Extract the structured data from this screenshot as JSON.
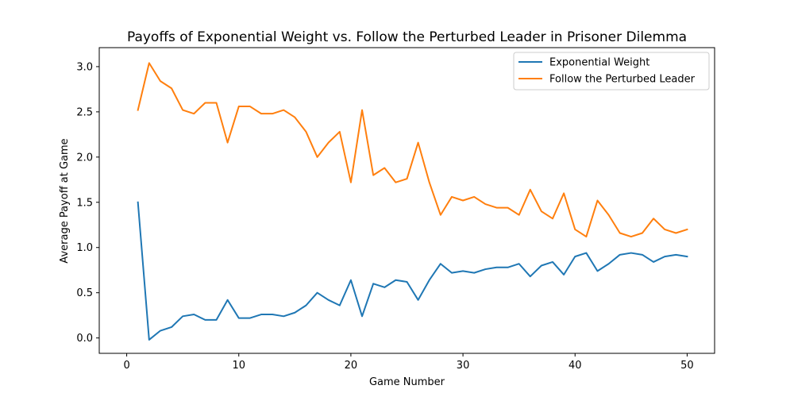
{
  "chart_data": {
    "type": "line",
    "title": "Payoffs of Exponential Weight vs. Follow the Perturbed Leader in Prisoner Dilemma",
    "xlabel": "Game Number",
    "ylabel": "Average Payoff at Game",
    "xlim": [
      -2.45,
      52.45
    ],
    "ylim": [
      -0.17,
      3.21
    ],
    "xticks": [
      0,
      10,
      20,
      30,
      40,
      50
    ],
    "xtick_labels": [
      "0",
      "10",
      "20",
      "30",
      "40",
      "50"
    ],
    "yticks": [
      0.0,
      0.5,
      1.0,
      1.5,
      2.0,
      2.5,
      3.0
    ],
    "ytick_labels": [
      "0.0",
      "0.5",
      "1.0",
      "1.5",
      "2.0",
      "2.5",
      "3.0"
    ],
    "grid": false,
    "legend_position": "top-right",
    "x": [
      1,
      2,
      3,
      4,
      5,
      6,
      7,
      8,
      9,
      10,
      11,
      12,
      13,
      14,
      15,
      16,
      17,
      18,
      19,
      20,
      21,
      22,
      23,
      24,
      25,
      26,
      27,
      28,
      29,
      30,
      31,
      32,
      33,
      34,
      35,
      36,
      37,
      38,
      39,
      40,
      41,
      42,
      43,
      44,
      45,
      46,
      47,
      48,
      49,
      50
    ],
    "series": [
      {
        "name": "Exponential Weight",
        "color": "#1f77b4",
        "values": [
          1.5,
          -0.02,
          0.08,
          0.12,
          0.24,
          0.26,
          0.2,
          0.2,
          0.42,
          0.22,
          0.22,
          0.26,
          0.26,
          0.24,
          0.28,
          0.36,
          0.5,
          0.42,
          0.36,
          0.64,
          0.24,
          0.6,
          0.56,
          0.64,
          0.62,
          0.42,
          0.64,
          0.82,
          0.72,
          0.74,
          0.72,
          0.76,
          0.78,
          0.78,
          0.82,
          0.68,
          0.8,
          0.84,
          0.7,
          0.9,
          0.94,
          0.74,
          0.82,
          0.92,
          0.94,
          0.92,
          0.84,
          0.9,
          0.92,
          0.9
        ]
      },
      {
        "name": "Follow the Perturbed Leader",
        "color": "#ff7f0e",
        "values": [
          2.52,
          3.04,
          2.84,
          2.76,
          2.52,
          2.48,
          2.6,
          2.6,
          2.16,
          2.56,
          2.56,
          2.48,
          2.48,
          2.52,
          2.44,
          2.28,
          2.0,
          2.16,
          2.28,
          1.72,
          2.52,
          1.8,
          1.88,
          1.72,
          1.76,
          2.16,
          1.72,
          1.36,
          1.56,
          1.52,
          1.56,
          1.48,
          1.44,
          1.44,
          1.36,
          1.64,
          1.4,
          1.32,
          1.6,
          1.2,
          1.12,
          1.52,
          1.36,
          1.16,
          1.12,
          1.16,
          1.32,
          1.2,
          1.16,
          1.2
        ]
      }
    ]
  }
}
